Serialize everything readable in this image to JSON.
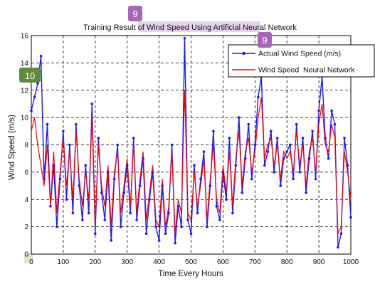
{
  "chart_data": {
    "type": "line",
    "title": "Training Result of Wind Speed Using Artificial Neural Network",
    "xlabel": "Time Every Hours",
    "ylabel": "Wind Speed (m/s)",
    "xlim": [
      0,
      1000
    ],
    "ylim": [
      0,
      16
    ],
    "xticks": [
      "0",
      "100",
      "200",
      "300",
      "400",
      "500",
      "600",
      "700",
      "800",
      "900",
      "1000"
    ],
    "yticks": [
      "0",
      "2",
      "4",
      "6",
      "8",
      "10",
      "12",
      "14",
      "16"
    ],
    "grid": true,
    "legend_position": "top-right",
    "series": [
      {
        "name": "Actual Wind Speed (m/s)",
        "color": "#1a1aff",
        "marker": "dot",
        "x": [
          0,
          10,
          20,
          30,
          40,
          50,
          60,
          70,
          80,
          90,
          100,
          110,
          120,
          130,
          140,
          150,
          160,
          170,
          180,
          190,
          200,
          210,
          220,
          230,
          240,
          250,
          260,
          270,
          280,
          290,
          300,
          310,
          320,
          330,
          340,
          350,
          360,
          370,
          380,
          390,
          400,
          410,
          420,
          430,
          440,
          450,
          460,
          470,
          480,
          490,
          500,
          510,
          520,
          530,
          540,
          550,
          560,
          570,
          580,
          590,
          600,
          610,
          620,
          630,
          640,
          650,
          660,
          670,
          680,
          690,
          700,
          710,
          720,
          730,
          740,
          750,
          760,
          770,
          780,
          790,
          800,
          810,
          820,
          830,
          840,
          850,
          860,
          870,
          880,
          890,
          900,
          910,
          920,
          930,
          940,
          950,
          960,
          970,
          980,
          990,
          1000
        ],
        "y": [
          10.5,
          11.5,
          12.5,
          14.5,
          5.5,
          9.5,
          3.5,
          6.5,
          2.0,
          5.5,
          9.0,
          4.0,
          8.0,
          3.0,
          9.5,
          5.0,
          2.5,
          6.5,
          3.0,
          11.0,
          1.5,
          8.5,
          4.5,
          2.5,
          6.0,
          1.0,
          5.5,
          8.0,
          2.0,
          4.5,
          6.5,
          3.0,
          8.5,
          2.5,
          5.0,
          7.0,
          1.5,
          4.0,
          6.0,
          2.0,
          1.0,
          5.0,
          1.5,
          3.0,
          8.0,
          0.8,
          3.5,
          2.0,
          15.8,
          2.5,
          1.5,
          6.5,
          3.0,
          5.5,
          7.5,
          2.0,
          5.0,
          9.0,
          3.5,
          2.5,
          6.0,
          4.0,
          8.5,
          3.0,
          6.5,
          10.0,
          4.5,
          7.0,
          9.5,
          5.5,
          8.0,
          11.5,
          13.0,
          6.5,
          7.5,
          9.0,
          6.0,
          8.5,
          5.0,
          7.0,
          7.5,
          8.0,
          5.5,
          9.5,
          6.0,
          8.5,
          4.5,
          7.0,
          9.0,
          5.5,
          10.5,
          13.0,
          8.5,
          7.0,
          10.5,
          9.5,
          0.5,
          1.5,
          8.5,
          6.5,
          2.7
        ]
      },
      {
        "name": "Wind Speed  Neural Network",
        "color": "#ff0000",
        "marker": "none",
        "x": [
          0,
          10,
          20,
          30,
          40,
          50,
          60,
          70,
          80,
          90,
          100,
          110,
          120,
          130,
          140,
          150,
          160,
          170,
          180,
          190,
          200,
          210,
          220,
          230,
          240,
          250,
          260,
          270,
          280,
          290,
          300,
          310,
          320,
          330,
          340,
          350,
          360,
          370,
          380,
          390,
          400,
          410,
          420,
          430,
          440,
          450,
          460,
          470,
          480,
          490,
          500,
          510,
          520,
          530,
          540,
          550,
          560,
          570,
          580,
          590,
          600,
          610,
          620,
          630,
          640,
          650,
          660,
          670,
          680,
          690,
          700,
          710,
          720,
          730,
          740,
          750,
          760,
          770,
          780,
          790,
          800,
          810,
          820,
          830,
          840,
          850,
          860,
          870,
          880,
          890,
          900,
          910,
          920,
          930,
          940,
          950,
          960,
          970,
          980,
          990,
          1000
        ],
        "y": [
          9.0,
          10.0,
          8.0,
          6.5,
          5.0,
          8.0,
          3.5,
          7.5,
          3.0,
          6.0,
          8.5,
          5.0,
          7.5,
          4.0,
          9.0,
          5.5,
          3.5,
          6.0,
          4.0,
          10.0,
          2.0,
          8.0,
          5.0,
          3.5,
          6.5,
          2.0,
          6.0,
          7.5,
          3.0,
          5.0,
          7.0,
          3.5,
          8.0,
          3.0,
          5.5,
          7.5,
          2.5,
          4.5,
          6.5,
          2.5,
          2.0,
          5.5,
          2.0,
          3.5,
          7.5,
          1.5,
          4.0,
          3.0,
          12.0,
          3.0,
          2.5,
          6.0,
          3.5,
          5.0,
          7.0,
          2.5,
          5.5,
          8.0,
          4.0,
          3.0,
          6.5,
          4.5,
          7.5,
          3.5,
          7.0,
          9.0,
          5.0,
          7.5,
          8.5,
          6.0,
          7.5,
          10.0,
          11.5,
          7.0,
          8.0,
          8.5,
          6.5,
          8.0,
          5.5,
          7.5,
          7.0,
          7.5,
          6.0,
          9.0,
          6.5,
          8.0,
          5.0,
          7.5,
          8.5,
          6.0,
          9.5,
          11.0,
          8.0,
          7.5,
          9.5,
          8.5,
          1.5,
          2.0,
          7.5,
          6.0,
          4.0
        ]
      }
    ]
  },
  "annotations": {
    "badge_title": {
      "label": "9",
      "color": "#a667b8"
    },
    "badge_legend": {
      "label": "9",
      "color": "#a667b8"
    },
    "badge_axis": {
      "label": "10",
      "color": "#5f8a3a"
    }
  },
  "colors": {
    "highlight": "#e6d3ee",
    "axis_tick_highlight": "#d9e8c9"
  }
}
